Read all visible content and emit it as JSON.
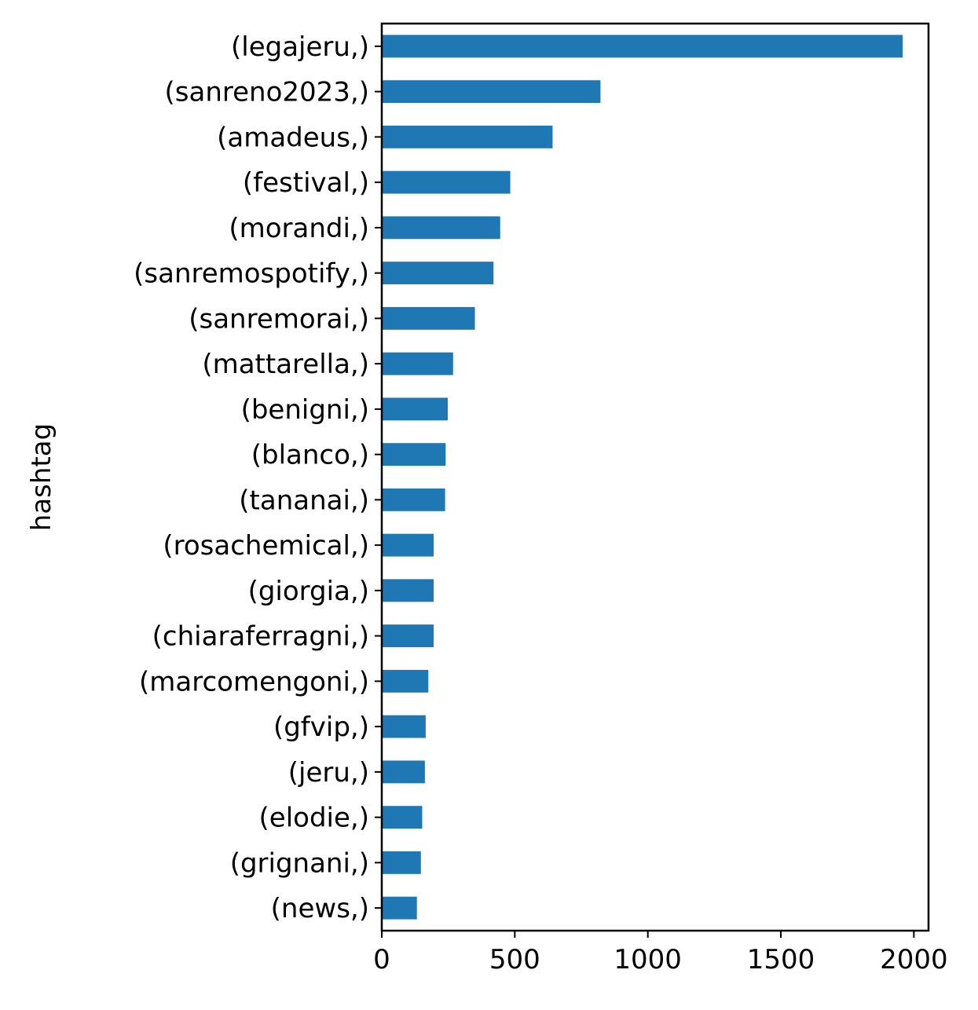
{
  "chart_data": {
    "type": "bar",
    "orientation": "horizontal",
    "title": "",
    "xlabel": "",
    "ylabel": "hashtag",
    "categories": [
      "(legajeru,)",
      "(sanreno2023,)",
      "(amadeus,)",
      "(festival,)",
      "(morandi,)",
      "(sanremospotify,)",
      "(sanremorai,)",
      "(mattarella,)",
      "(benigni,)",
      "(blanco,)",
      "(tananai,)",
      "(rosachemical,)",
      "(giorgia,)",
      "(chiaraferragni,)",
      "(marcomengoni,)",
      "(gfvip,)",
      "(jeru,)",
      "(elodie,)",
      "(grignani,)",
      "(news,)"
    ],
    "values": [
      1958,
      822,
      642,
      483,
      445,
      420,
      350,
      268,
      248,
      240,
      238,
      195,
      195,
      195,
      175,
      165,
      162,
      152,
      147,
      132
    ],
    "xlim": [
      0,
      2055
    ],
    "xticks": [
      0,
      500,
      1000,
      1500,
      2000
    ],
    "bar_color": "#1f77b4",
    "grid": false,
    "legend": "none"
  }
}
